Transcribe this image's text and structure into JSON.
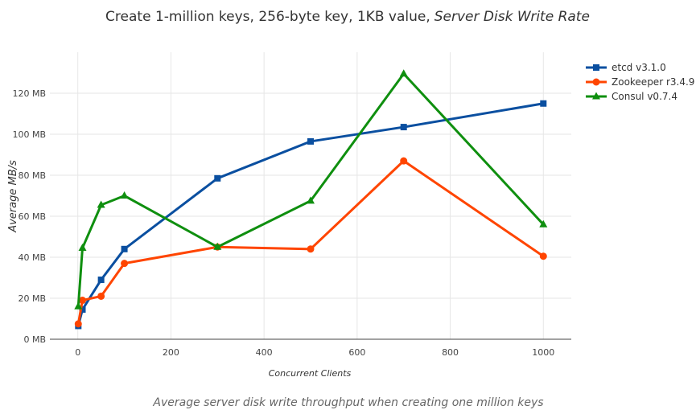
{
  "chart_data": {
    "type": "line",
    "title": "Create 1-million keys, 256-byte key, 1KB value,",
    "title_emphasis": "Server Disk Write Rate",
    "xlabel": "Concurrent Clients",
    "ylabel": "Average MB/s",
    "caption": "Average server disk write throughput when creating one million keys",
    "xlim": [
      -60,
      1060
    ],
    "ylim": [
      0,
      140
    ],
    "x_ticks": [
      0,
      200,
      400,
      600,
      800,
      1000
    ],
    "x_tick_labels": [
      "0",
      "200",
      "400",
      "600",
      "800",
      "1000"
    ],
    "y_ticks": [
      0,
      20,
      40,
      60,
      80,
      100,
      120
    ],
    "y_tick_labels": [
      "0 MB",
      "20 MB",
      "40 MB",
      "60 MB",
      "80 MB",
      "100 MB",
      "120 MB"
    ],
    "grid": true,
    "legend_position": "top-right",
    "series": [
      {
        "name": "etcd v3.1.0",
        "color": "#0a4fa0",
        "marker": "square",
        "x": [
          1,
          10,
          50,
          100,
          300,
          500,
          700,
          1000
        ],
        "values": [
          6.5,
          14.5,
          29,
          44,
          78.5,
          96.5,
          103.5,
          115
        ]
      },
      {
        "name": "Zookeeper r3.4.9",
        "color": "#ff4500",
        "marker": "circle",
        "x": [
          1,
          10,
          50,
          100,
          300,
          500,
          700,
          1000
        ],
        "values": [
          7.5,
          19,
          21,
          37,
          45,
          44,
          87,
          40.5
        ]
      },
      {
        "name": "Consul v0.7.4",
        "color": "#0f8f0f",
        "marker": "triangle",
        "x": [
          1,
          10,
          50,
          100,
          300,
          500,
          700,
          1000
        ],
        "values": [
          16,
          44.5,
          65.5,
          70,
          45,
          67.5,
          129.5,
          56
        ]
      }
    ]
  }
}
